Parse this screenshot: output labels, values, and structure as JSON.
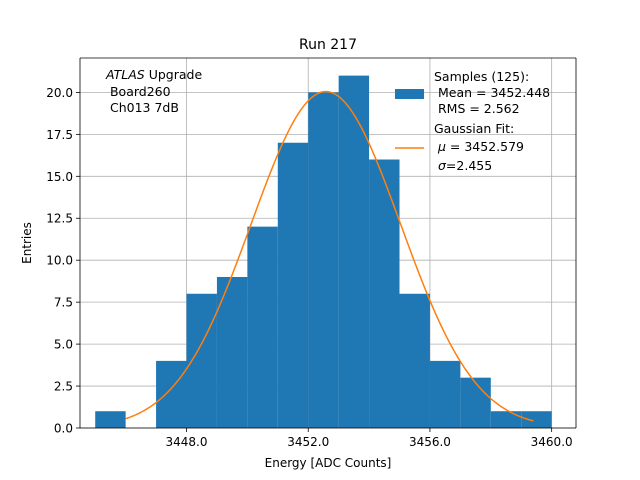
{
  "chart_data": {
    "type": "bar",
    "title": "Run 217",
    "xlabel": "Energy [ADC Counts]",
    "ylabel": "Entries",
    "xlim": [
      3444.5,
      3460.8
    ],
    "ylim": [
      0,
      22.05
    ],
    "grid": true,
    "x_ticks": [
      3448.0,
      3452.0,
      3456.0,
      3460.0
    ],
    "x_tick_labels": [
      "3448.0",
      "3452.0",
      "3456.0",
      "3460.0"
    ],
    "y_ticks": [
      0,
      2.5,
      5,
      7.5,
      10,
      12.5,
      15,
      17.5,
      20
    ],
    "y_tick_labels": [
      "0.0",
      "2.5",
      "5.0",
      "7.5",
      "10.0",
      "12.5",
      "15.0",
      "17.5",
      "20.0"
    ],
    "annotation": {
      "line1_italic": "ATLAS",
      "line1_rest": " Upgrade",
      "line2": " Board260",
      "line3": " Ch013 7dB"
    },
    "histogram": {
      "bin_edges": [
        3445.0,
        3446.0,
        3447.0,
        3448.0,
        3449.0,
        3450.0,
        3451.0,
        3452.0,
        3453.0,
        3454.0,
        3455.0,
        3456.0,
        3457.0,
        3458.0,
        3459.0,
        3460.0
      ],
      "counts": [
        1,
        0,
        4,
        8,
        9,
        12,
        17,
        20,
        21,
        16,
        8,
        4,
        3,
        1,
        1
      ],
      "color": "#1f77b4"
    },
    "fit": {
      "mu": 3452.579,
      "sigma": 2.455,
      "amplitude": 20.05,
      "x_range": [
        3446.0,
        3459.4
      ],
      "color": "#ff7f0e"
    },
    "legend": {
      "placement": "top-right",
      "samples_lines": [
        "Samples (125):",
        " Mean = 3452.448",
        " RMS = 2.562"
      ],
      "fit_lines": [
        "Gaussian Fit:",
        "μ = 3452.579",
        "σ=2.455"
      ],
      "fit_mu_symbol": "μ",
      "fit_mu_rest": " = 3452.579",
      "fit_sigma_symbol": "σ",
      "fit_sigma_rest": "=2.455"
    }
  }
}
